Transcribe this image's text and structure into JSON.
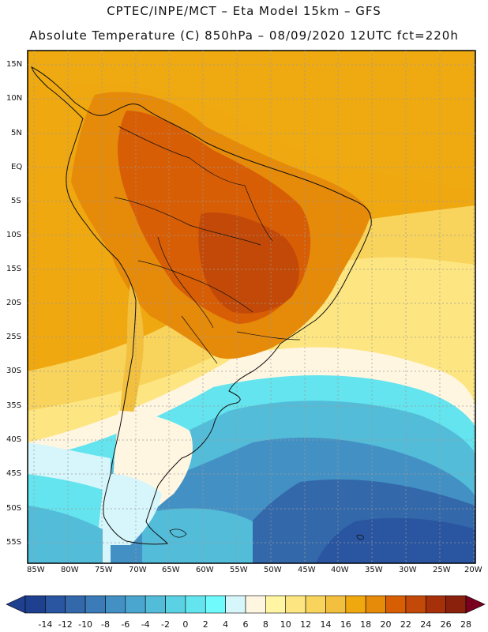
{
  "header": {
    "line1": "CPTEC/INPE/MCT –  Eta Model 15km – GFS",
    "line2": "Absolute Temperature (C) 850hPa – 08/09/2020 12UTC fct=220h"
  },
  "map": {
    "region": "South America",
    "lat_labels": [
      "15N",
      "10N",
      "5N",
      "EQ",
      "5S",
      "10S",
      "15S",
      "20S",
      "25S",
      "30S",
      "35S",
      "40S",
      "45S",
      "50S",
      "55S"
    ],
    "lon_labels": [
      "85W",
      "80W",
      "75W",
      "70W",
      "65W",
      "60W",
      "55W",
      "50W",
      "45W",
      "40W",
      "35W",
      "30W",
      "25W",
      "20W"
    ]
  },
  "colorbar": {
    "labels": [
      "-14",
      "-12",
      "-10",
      "-8",
      "-6",
      "-4",
      "-2",
      "0",
      "2",
      "4",
      "6",
      "8",
      "10",
      "12",
      "14",
      "16",
      "18",
      "20",
      "22",
      "24",
      "26",
      "28"
    ],
    "colors": [
      "#1f3f8f",
      "#2a55a0",
      "#3368ab",
      "#3a7bb8",
      "#4391c4",
      "#4aa6cf",
      "#53bcd9",
      "#5ad2e3",
      "#63e4ee",
      "#70fafc",
      "#d6f6fb",
      "#fff6e2",
      "#fff5a3",
      "#fde681",
      "#f9d45c",
      "#f2bf3e",
      "#efa80f",
      "#e68a0a",
      "#d85e05",
      "#c24907",
      "#a5300a",
      "#8a210d"
    ]
  }
}
